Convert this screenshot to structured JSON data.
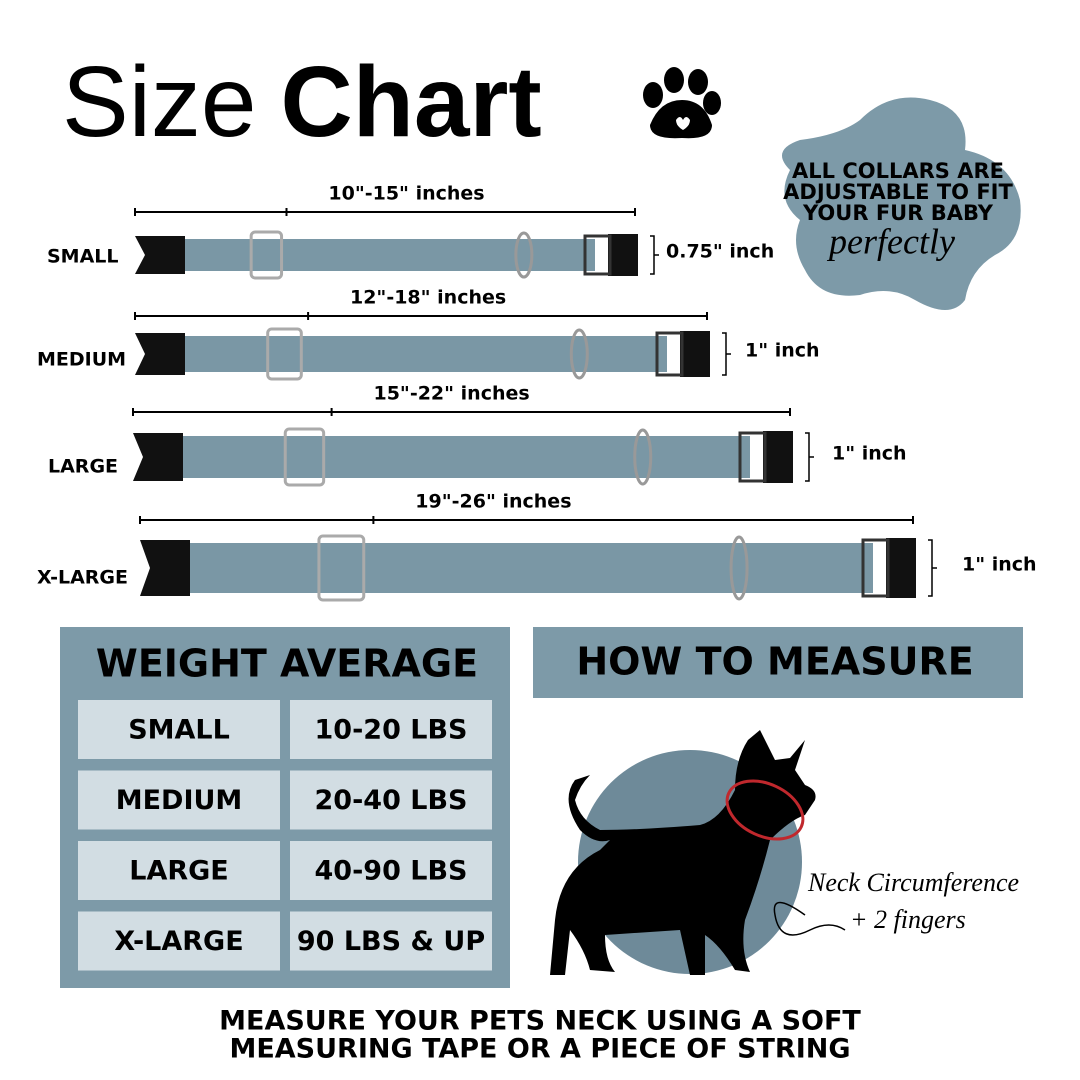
{
  "title": {
    "light": "Size",
    "bold": "Chart"
  },
  "badge": {
    "text": [
      "ALL COLLARS ARE",
      "ADJUSTABLE TO FIT",
      "YOUR FUR BABY"
    ],
    "script": "perfectly"
  },
  "collars": [
    {
      "name": "SMALL",
      "length": "10\"-15\" inches",
      "width": "0.75\" inch"
    },
    {
      "name": "MEDIUM",
      "length": "12\"-18\" inches",
      "width": "1\" inch"
    },
    {
      "name": "LARGE",
      "length": "15\"-22\" inches",
      "width": "1\" inch"
    },
    {
      "name": "X-LARGE",
      "length": "19\"-26\" inches",
      "width": "1\" inch"
    }
  ],
  "weight_table": {
    "title": "WEIGHT AVERAGE",
    "rows": [
      [
        "SMALL",
        "10-20 LBS"
      ],
      [
        "MEDIUM",
        "20-40 LBS"
      ],
      [
        "LARGE",
        "40-90 LBS"
      ],
      [
        "X-LARGE",
        "90 LBS & UP"
      ]
    ]
  },
  "how_to_measure": {
    "title": "HOW TO MEASURE",
    "annotation": [
      "Neck Circumference",
      "+ 2 fingers"
    ]
  },
  "footer": [
    "MEASURE YOUR PETS NECK USING A SOFT",
    "MEASURING TAPE OR A PIECE OF STRING"
  ]
}
